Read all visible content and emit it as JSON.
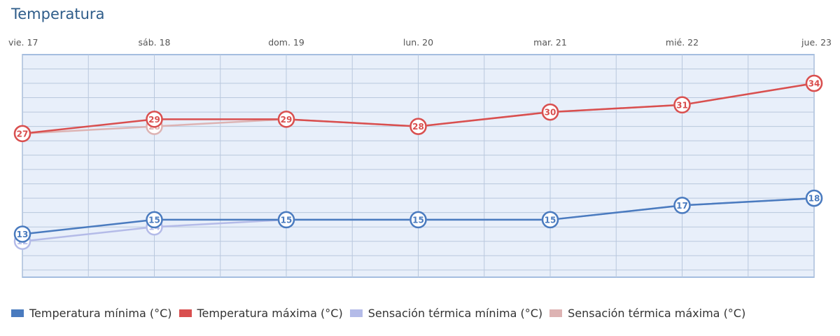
{
  "title": "Temperatura",
  "chart_data": {
    "type": "line",
    "categories": [
      "vie. 17",
      "sáb. 18",
      "dom. 19",
      "lun. 20",
      "mar. 21",
      "mié. 22",
      "jue. 23"
    ],
    "ylim": [
      7,
      38
    ],
    "grid": true,
    "legend_placement": "bottom",
    "series": [
      {
        "name": "Temperatura mínima (°C)",
        "color": "#4a7bbf",
        "values": [
          13,
          15,
          15,
          15,
          15,
          17,
          18
        ]
      },
      {
        "name": "Temperatura máxima (°C)",
        "color": "#d94f4f",
        "values": [
          27,
          29,
          29,
          28,
          30,
          31,
          34
        ]
      },
      {
        "name": "Sensación térmica mínima (°C)",
        "color": "#b4bbe8",
        "values": [
          12,
          14,
          15,
          15,
          15,
          17,
          18
        ]
      },
      {
        "name": "Sensación térmica máxima (°C)",
        "color": "#ddb3b3",
        "values": [
          27,
          28,
          29,
          28,
          30,
          31,
          34
        ]
      }
    ]
  }
}
